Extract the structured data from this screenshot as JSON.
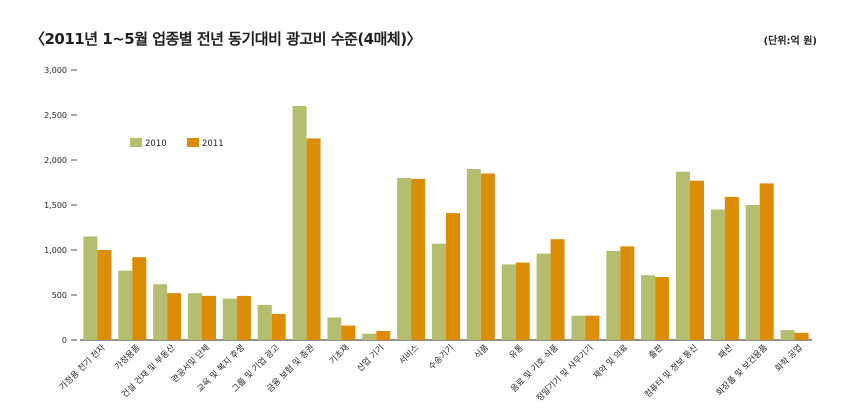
{
  "header": {
    "title": "〈2011년 1~5월 업종별 전년 동기대비 광고비 수준(4매체)〉",
    "unit": "(단위:억 원)"
  },
  "colors": {
    "series_2010": "#b5bd6e",
    "series_2011": "#dc8c05",
    "axis": "#231f20"
  },
  "chart_data": {
    "type": "bar",
    "title": "〈2011년 1~5월 업종별 전년 동기대비 광고비 수준(4매체)〉",
    "ylabel": "",
    "xlabel": "",
    "unit": "(단위:억 원)",
    "ylim": [
      0,
      3000
    ],
    "yticks": [
      0,
      500,
      1000,
      1500,
      2000,
      2500,
      3000
    ],
    "ytick_labels": [
      "0",
      "500",
      "1,000",
      "1,500",
      "2,000",
      "2,500",
      "3,000"
    ],
    "grid": false,
    "legend_position": "top-left",
    "categories": [
      "가정용 전기 전자",
      "가정용품",
      "건설 건재 및 부동산",
      "관공서및 단체",
      "교육 및 복지 후생",
      "그룹 및 기업 광고",
      "금융 보험 및 증권",
      "기초재",
      "산업 기기",
      "서비스",
      "수송기기",
      "식품",
      "유통",
      "음료 및 기호 식품",
      "정밀기기 및 사무기기",
      "제약 및 의료",
      "출판",
      "컴퓨터 및 정보 통신",
      "패션",
      "화장품 및 보건용품",
      "화학 공업"
    ],
    "series": [
      {
        "name": "2010",
        "values": [
          1150,
          770,
          620,
          520,
          460,
          390,
          2600,
          250,
          70,
          1800,
          1070,
          1900,
          840,
          960,
          270,
          990,
          720,
          1870,
          1450,
          1500,
          110
        ]
      },
      {
        "name": "2011",
        "values": [
          1000,
          920,
          520,
          490,
          490,
          290,
          2240,
          160,
          100,
          1790,
          1410,
          1850,
          860,
          1120,
          270,
          1040,
          700,
          1770,
          1590,
          1740,
          80
        ]
      }
    ]
  }
}
